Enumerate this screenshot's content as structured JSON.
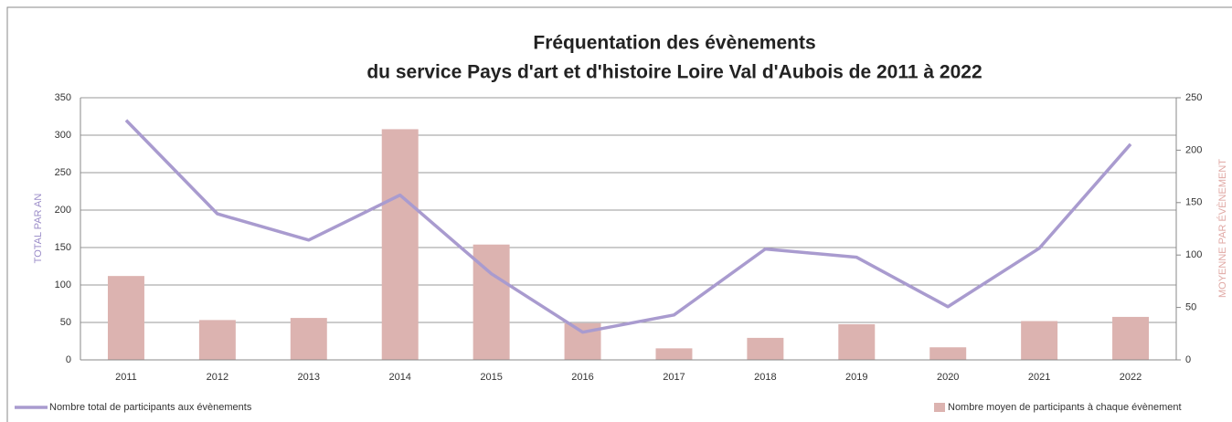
{
  "chart_data": {
    "type": "bar-line",
    "title": [
      "Fréquentation des évènements",
      "du service Pays d'art et d'histoire Loire Val d'Aubois de 2011 à 2022"
    ],
    "categories": [
      "2011",
      "2012",
      "2013",
      "2014",
      "2015",
      "2016",
      "2017",
      "2018",
      "2019",
      "2020",
      "2021",
      "2022"
    ],
    "ylabel": "TOTAL PAR AN",
    "y2label": "MOYENNE PAR ÉVÈNEMENT",
    "ylim": [
      0,
      350
    ],
    "yticks": [
      0,
      50,
      100,
      150,
      200,
      250,
      300,
      350
    ],
    "y2lim": [
      0,
      250
    ],
    "y2ticks": [
      0,
      50,
      100,
      150,
      200,
      250
    ],
    "grid": true,
    "series": [
      {
        "name": "Nombre total de participants aux évènements",
        "type": "line",
        "axis": "y",
        "color": "#a99bcf",
        "values": [
          320,
          195,
          160,
          220,
          115,
          37,
          60,
          148,
          137,
          71,
          149,
          288
        ]
      },
      {
        "name": "Nombre moyen de participants à chaque évènement",
        "type": "bar",
        "axis": "y2",
        "color": "#dcb3b0",
        "values": [
          80,
          38,
          40,
          220,
          110,
          35,
          11,
          21,
          34,
          12,
          37,
          41
        ]
      }
    ]
  }
}
